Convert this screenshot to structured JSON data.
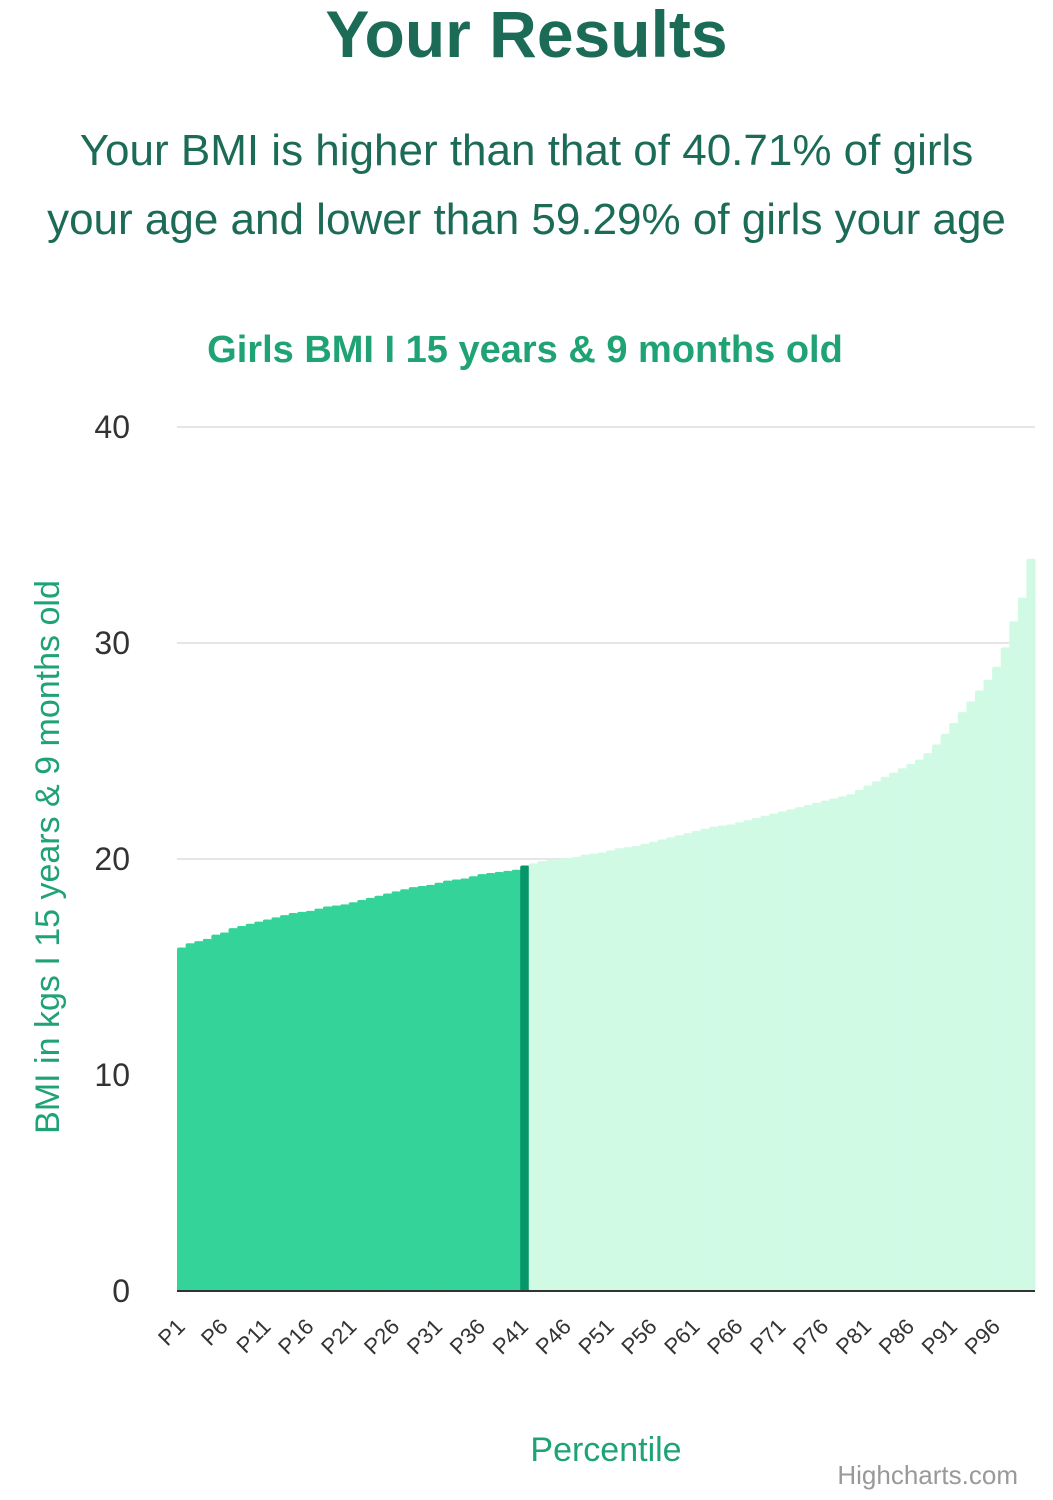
{
  "header": {
    "title": "Your Results",
    "result_line_1": "Your BMI is higher than that of 40.71% of girls",
    "result_line_2": "your age and lower than 59.29% of girls your age"
  },
  "colors": {
    "heading": "#1c6b57",
    "accent": "#1fa374",
    "below": "#34d399",
    "current": "#079669",
    "above": "#d1fae5"
  },
  "chart_data": {
    "type": "bar",
    "title": "Girls BMI I 15 years & 9 months old",
    "xlabel": "Percentile",
    "ylabel": "BMI in kgs I 15 years & 9 months old",
    "ylim": [
      0,
      40
    ],
    "yticks": [
      0,
      10,
      20,
      30,
      40
    ],
    "grid": true,
    "legend": "none",
    "credits": "Highcharts.com",
    "highlight_category": "P41",
    "categories": [
      "P1",
      "P2",
      "P3",
      "P4",
      "P5",
      "P6",
      "P7",
      "P8",
      "P9",
      "P10",
      "P11",
      "P12",
      "P13",
      "P14",
      "P15",
      "P16",
      "P17",
      "P18",
      "P19",
      "P20",
      "P21",
      "P22",
      "P23",
      "P24",
      "P25",
      "P26",
      "P27",
      "P28",
      "P29",
      "P30",
      "P31",
      "P32",
      "P33",
      "P34",
      "P35",
      "P36",
      "P37",
      "P38",
      "P39",
      "P40",
      "P41",
      "P42",
      "P43",
      "P44",
      "P45",
      "P46",
      "P47",
      "P48",
      "P49",
      "P50",
      "P51",
      "P52",
      "P53",
      "P54",
      "P55",
      "P56",
      "P57",
      "P58",
      "P59",
      "P60",
      "P61",
      "P62",
      "P63",
      "P64",
      "P65",
      "P66",
      "P67",
      "P68",
      "P69",
      "P70",
      "P71",
      "P72",
      "P73",
      "P74",
      "P75",
      "P76",
      "P77",
      "P78",
      "P79",
      "P80",
      "P81",
      "P82",
      "P83",
      "P84",
      "P85",
      "P86",
      "P87",
      "P88",
      "P89",
      "P90",
      "P91",
      "P92",
      "P93",
      "P94",
      "P95",
      "P96",
      "P97",
      "P98",
      "P99",
      "P100"
    ],
    "visible_tick_labels": [
      "P1",
      "P6",
      "P11",
      "P16",
      "P21",
      "P26",
      "P31",
      "P36",
      "P41",
      "P46",
      "P51",
      "P56",
      "P61",
      "P66",
      "P71",
      "P76",
      "P81",
      "P86",
      "P91",
      "P96"
    ],
    "values": [
      15.9,
      16.1,
      16.2,
      16.3,
      16.5,
      16.6,
      16.8,
      16.9,
      17.0,
      17.1,
      17.2,
      17.3,
      17.4,
      17.5,
      17.55,
      17.6,
      17.7,
      17.8,
      17.85,
      17.9,
      18.0,
      18.1,
      18.2,
      18.3,
      18.4,
      18.5,
      18.6,
      18.7,
      18.75,
      18.8,
      18.9,
      19.0,
      19.05,
      19.1,
      19.2,
      19.3,
      19.35,
      19.4,
      19.45,
      19.5,
      19.7,
      19.8,
      19.9,
      19.95,
      20.0,
      20.05,
      20.1,
      20.2,
      20.25,
      20.3,
      20.4,
      20.5,
      20.55,
      20.6,
      20.7,
      20.8,
      20.9,
      21.0,
      21.1,
      21.2,
      21.3,
      21.4,
      21.5,
      21.55,
      21.6,
      21.7,
      21.8,
      21.9,
      22.0,
      22.1,
      22.2,
      22.3,
      22.4,
      22.5,
      22.6,
      22.7,
      22.8,
      22.9,
      23.0,
      23.2,
      23.4,
      23.6,
      23.8,
      24.0,
      24.2,
      24.4,
      24.6,
      24.9,
      25.3,
      25.8,
      26.3,
      26.8,
      27.3,
      27.8,
      28.3,
      28.9,
      29.8,
      31.0,
      32.1,
      33.9
    ]
  }
}
